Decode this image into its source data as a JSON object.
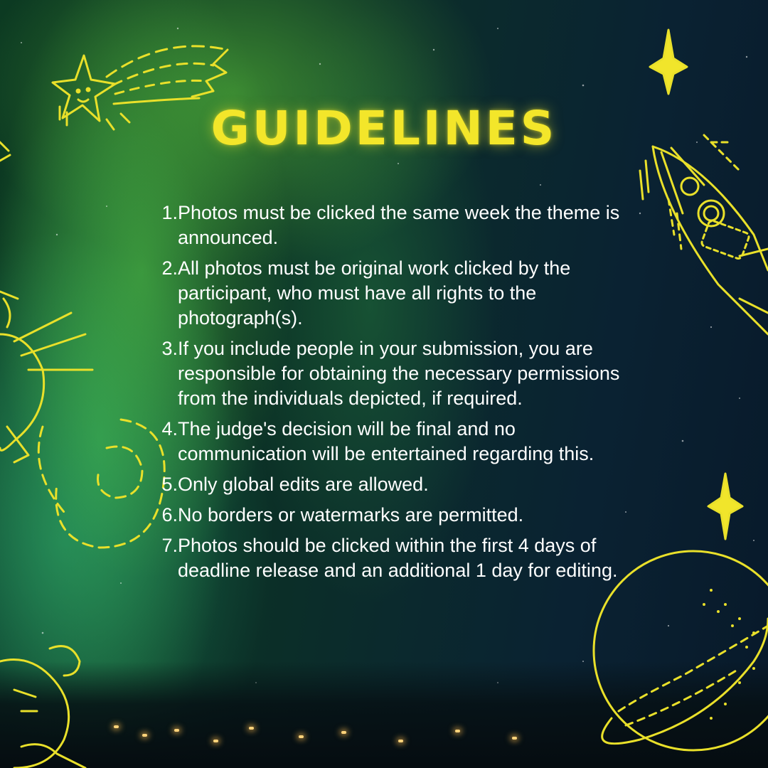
{
  "title": "GUIDELINES",
  "accent_color": "#f3e62a",
  "rules": [
    {
      "number": "1.",
      "text": "Photos must be clicked the same week the theme is announced."
    },
    {
      "number": "2.",
      "text": "All photos must be original work clicked by the participant, who must have all rights to the photograph(s)."
    },
    {
      "number": "3.",
      "text": "If you include people in your submission, you are responsible for obtaining the necessary permissions from the individuals depicted, if required."
    },
    {
      "number": "4.",
      "text": "The judge's decision will be final and no communication will be entertained regarding this."
    },
    {
      "number": "5.",
      "text": "Only global edits are allowed."
    },
    {
      "number": "6.",
      "text": "No borders or watermarks are permitted."
    },
    {
      "number": "7.",
      "text": "Photos should be clicked within the first 4 days of deadline release and an additional 1 day for editing."
    }
  ],
  "decorations": [
    "shooting-star-icon",
    "sparkle-icon",
    "rocket-icon",
    "bird-icon",
    "swirl-icon",
    "planet-icon",
    "critter-icon"
  ]
}
